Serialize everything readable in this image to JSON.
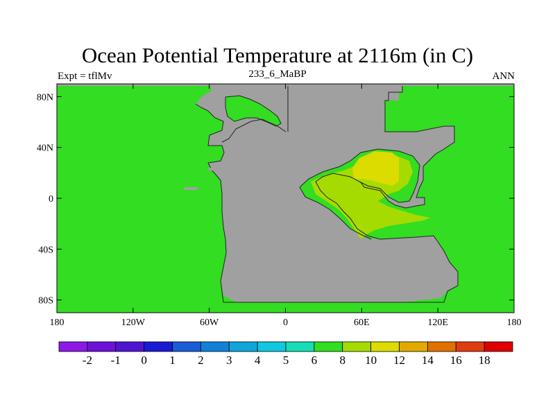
{
  "title": "Ocean Potential Temperature at 2116m (in C)",
  "subtitle_left": "Expt = tflMv",
  "subtitle_center": "233_6_MaBP",
  "subtitle_right": "ANN",
  "map": {
    "lon_range": [
      -180,
      180
    ],
    "lat_range": [
      -90,
      90
    ],
    "x_ticks": [
      {
        "value": -180,
        "label": "180"
      },
      {
        "value": -120,
        "label": "120W"
      },
      {
        "value": -60,
        "label": "60W"
      },
      {
        "value": 0,
        "label": "0"
      },
      {
        "value": 60,
        "label": "60E"
      },
      {
        "value": 120,
        "label": "120E"
      },
      {
        "value": 180,
        "label": "180"
      }
    ],
    "y_ticks": [
      {
        "value": 80,
        "label": "80N"
      },
      {
        "value": 40,
        "label": "40N"
      },
      {
        "value": 0,
        "label": "0"
      },
      {
        "value": -40,
        "label": "40S"
      },
      {
        "value": -80,
        "label": "80S"
      }
    ],
    "land_color": "#a0a0a0",
    "ocean_color": "#33dd22",
    "warm_colors": {
      "c8_10": "#a6db00",
      "c10_12": "#dcdc00"
    }
  },
  "colorbar": {
    "colors": [
      "#8c1ae6",
      "#6e12d8",
      "#4f16cf",
      "#1a1ad4",
      "#1a5cd6",
      "#1080d8",
      "#10a6da",
      "#10c8de",
      "#18ddb4",
      "#33dd22",
      "#a6db00",
      "#dcdc00",
      "#e0aa00",
      "#e07000",
      "#e03c10",
      "#e00000"
    ],
    "labels": [
      "-2",
      "-1",
      "0",
      "1",
      "2",
      "3",
      "4",
      "5",
      "6",
      "8",
      "10",
      "12",
      "14",
      "16",
      "18"
    ]
  }
}
